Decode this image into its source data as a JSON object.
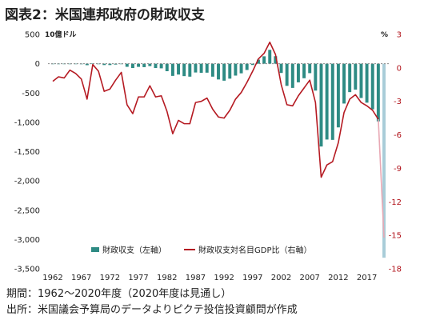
{
  "title": "図表2：米国連邦政府の財政収支",
  "notes": {
    "period": "期間：1962～2020年度（2020年度は見通し）",
    "source": "出所：米国議会予算局のデータよりピクテ投信投資顧問が作成"
  },
  "colors": {
    "bar": "#2e8b84",
    "bar_projection": "#a8ccd8",
    "line": "#b51a22",
    "line_projection": "#e8a8b4",
    "axis_left": "#222222",
    "axis_right": "#b01018"
  },
  "chart_data": {
    "type": "bar+line",
    "title": "図表2：米国連邦政府の財政収支",
    "left_axis": {
      "unit": "10億ドル",
      "ylim": [
        -3500,
        500
      ],
      "ticks": [
        500,
        0,
        -500,
        -1000,
        -1500,
        -2000,
        -2500,
        -3000,
        -3500
      ],
      "tick_labels": [
        "500",
        "0",
        "-500",
        "-1,000",
        "-1,500",
        "-2,000",
        "-2,500",
        "-3,000",
        "-3,500"
      ]
    },
    "right_axis": {
      "unit": "%",
      "ylim": [
        -18,
        3
      ],
      "ticks": [
        3,
        0,
        -3,
        -6,
        -9,
        -12,
        -15,
        -18
      ],
      "tick_labels": [
        "3",
        "0",
        "-3",
        "-6",
        "-9",
        "-12",
        "-15",
        "-18"
      ]
    },
    "x_tick_labels": [
      "1962",
      "1967",
      "1972",
      "1977",
      "1982",
      "1987",
      "1992",
      "1997",
      "2002",
      "2007",
      "2012",
      "2017"
    ],
    "years": [
      1962,
      1963,
      1964,
      1965,
      1966,
      1967,
      1968,
      1969,
      1970,
      1971,
      1972,
      1973,
      1974,
      1975,
      1976,
      1977,
      1978,
      1979,
      1980,
      1981,
      1982,
      1983,
      1984,
      1985,
      1986,
      1987,
      1988,
      1989,
      1990,
      1991,
      1992,
      1993,
      1994,
      1995,
      1996,
      1997,
      1998,
      1999,
      2000,
      2001,
      2002,
      2003,
      2004,
      2005,
      2006,
      2007,
      2008,
      2009,
      2010,
      2011,
      2012,
      2013,
      2014,
      2015,
      2016,
      2017,
      2018,
      2019,
      2020
    ],
    "projection_year": 2020,
    "series": [
      {
        "name": "財政収支（左軸）",
        "kind": "bar",
        "axis": "left",
        "values": [
          -7,
          -5,
          -6,
          -1,
          -4,
          -9,
          -25,
          3,
          -3,
          -23,
          -23,
          -15,
          -6,
          -53,
          -74,
          -54,
          -59,
          -41,
          -74,
          -79,
          -128,
          -208,
          -185,
          -212,
          -221,
          -150,
          -155,
          -153,
          -221,
          -269,
          -290,
          -255,
          -203,
          -164,
          -107,
          -22,
          69,
          126,
          236,
          128,
          -158,
          -378,
          -413,
          -318,
          -248,
          -161,
          -459,
          -1413,
          -1294,
          -1300,
          -1087,
          -680,
          -485,
          -442,
          -585,
          -665,
          -779,
          -984,
          -3311
        ]
      },
      {
        "name": "財政収支対名目GDP比（右軸）",
        "kind": "line",
        "axis": "right",
        "values": [
          -1.2,
          -0.8,
          -0.9,
          -0.2,
          -0.5,
          -1.0,
          -2.8,
          0.3,
          -0.3,
          -2.1,
          -1.9,
          -1.1,
          -0.4,
          -3.3,
          -4.1,
          -2.6,
          -2.6,
          -1.6,
          -2.6,
          -2.5,
          -3.9,
          -5.9,
          -4.7,
          -5.0,
          -5.0,
          -3.1,
          -3.0,
          -2.7,
          -3.7,
          -4.4,
          -4.5,
          -3.8,
          -2.8,
          -2.2,
          -1.3,
          -0.3,
          0.8,
          1.3,
          2.3,
          1.2,
          -1.5,
          -3.3,
          -3.4,
          -2.5,
          -1.8,
          -1.1,
          -3.1,
          -9.8,
          -8.7,
          -8.4,
          -6.7,
          -4.0,
          -2.8,
          -2.4,
          -3.1,
          -3.4,
          -3.8,
          -4.6,
          -15.2
        ]
      }
    ],
    "legend": {
      "placement": "bottom-center",
      "bar_label": "財政収支（左軸）",
      "line_label": "財政収支対名目GDP比（右軸）"
    },
    "grid": false
  }
}
